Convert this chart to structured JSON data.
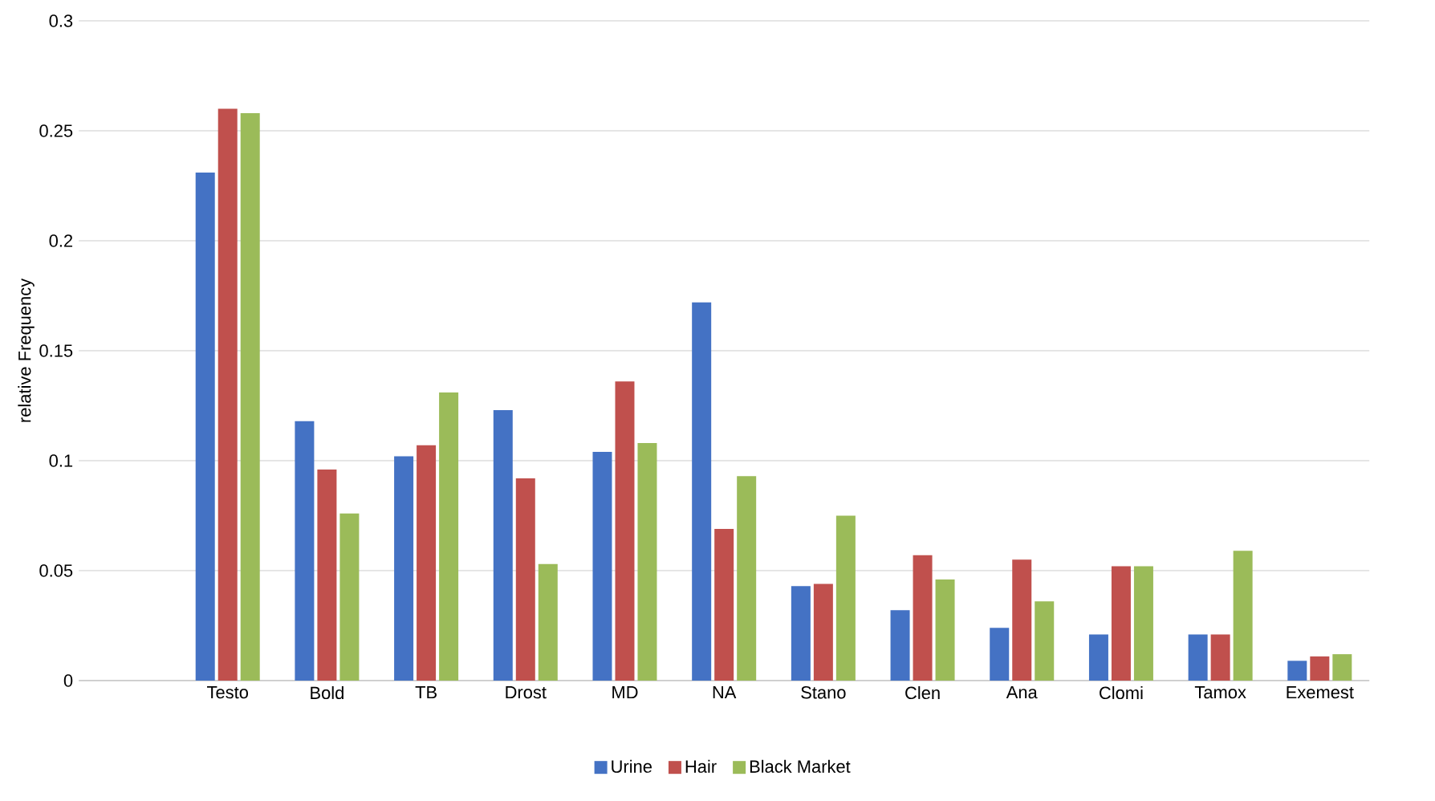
{
  "chart_data": {
    "type": "bar",
    "ylabel": "relative Frequency",
    "categories": [
      null,
      "Testo",
      "Bold",
      "TB",
      "Drost",
      "MD",
      "NA",
      "Stano",
      "Clen",
      "Ana",
      "Clomi",
      "Tamox",
      "Exemest"
    ],
    "series": [
      {
        "name": "Urine",
        "color": "#4472c4",
        "values": [
          null,
          0.231,
          0.118,
          0.102,
          0.123,
          0.104,
          0.172,
          0.043,
          0.032,
          0.024,
          0.021,
          0.021,
          0.009
        ]
      },
      {
        "name": "Hair",
        "color": "#c0504d",
        "values": [
          null,
          0.26,
          0.096,
          0.107,
          0.092,
          0.136,
          0.069,
          0.044,
          0.057,
          0.055,
          0.052,
          0.021,
          0.011
        ]
      },
      {
        "name": "Black Market",
        "color": "#9bbb59",
        "values": [
          null,
          0.258,
          0.076,
          0.131,
          0.053,
          0.108,
          0.093,
          0.075,
          0.046,
          0.036,
          0.052,
          0.059,
          0.012
        ]
      }
    ],
    "ylim": [
      0,
      0.3
    ],
    "yticks": [
      0,
      0.05,
      0.1,
      0.15,
      0.2,
      0.25,
      0.3
    ],
    "grid": "y",
    "legend": "bottom"
  }
}
